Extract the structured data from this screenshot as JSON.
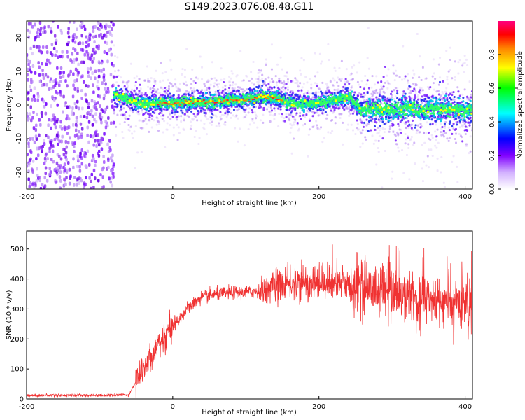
{
  "title": "S149.2023.076.08.48.G11",
  "chart_data": [
    {
      "type": "heatmap",
      "xlabel": "Height of straight line (km)",
      "ylabel": "Frequency (Hz)",
      "xlim": [
        -200,
        410
      ],
      "ylim": [
        -25,
        25
      ],
      "xticks": [
        -200,
        0,
        200,
        400
      ],
      "yticks": [
        20,
        10,
        0,
        -10,
        -20
      ],
      "colorbar": {
        "label": "Normalized spectral amplitude",
        "ticks": [
          0.0,
          0.2,
          0.4,
          0.6,
          0.8
        ],
        "tick_labels": [
          "0.0",
          "0.2",
          "0.4",
          "0.6",
          "0.8"
        ],
        "range": [
          0,
          1
        ],
        "colormap": [
          "#ffffff",
          "#8000ff",
          "#0000ff",
          "#00ffff",
          "#00ff00",
          "#ffff00",
          "#ff8000",
          "#ff0000",
          "#ff0080"
        ]
      },
      "noise_region_x": [
        -200,
        -80
      ],
      "ridge": {
        "x": [
          -80,
          -60,
          -40,
          -20,
          0,
          20,
          40,
          60,
          80,
          100,
          120,
          140,
          160,
          180,
          200,
          220,
          240,
          260,
          280,
          300,
          320,
          340,
          360,
          380,
          400,
          410
        ],
        "y": [
          3,
          1.5,
          0.5,
          0.5,
          0.5,
          0.8,
          1,
          1,
          1.5,
          1.5,
          2.5,
          2,
          0.5,
          0.5,
          0.5,
          1.5,
          2.5,
          -1.5,
          -1,
          -1.5,
          -1,
          -1.5,
          -1,
          -1.5,
          -1.5,
          -1.5
        ]
      }
    },
    {
      "type": "line",
      "xlabel": "Height of straight line (km)",
      "ylabel": "SNR (10 * v/v)",
      "xlim": [
        -200,
        410
      ],
      "ylim": [
        0,
        560
      ],
      "xticks": [
        -200,
        0,
        200,
        400
      ],
      "yticks": [
        0,
        100,
        200,
        300,
        400,
        500
      ],
      "color": "#f03232",
      "series": [
        {
          "x": [
            -200,
            -150,
            -100,
            -60,
            -50,
            -40,
            -30,
            -20,
            -10,
            0,
            10,
            20,
            30,
            40,
            60,
            80,
            100,
            120,
            130,
            150,
            200,
            250,
            300,
            350,
            400,
            410
          ],
          "values": [
            12,
            12,
            12,
            14,
            60,
            110,
            140,
            180,
            210,
            250,
            270,
            300,
            320,
            340,
            350,
            355,
            355,
            360,
            370,
            380,
            385,
            380,
            350,
            330,
            320,
            320
          ]
        }
      ]
    }
  ]
}
